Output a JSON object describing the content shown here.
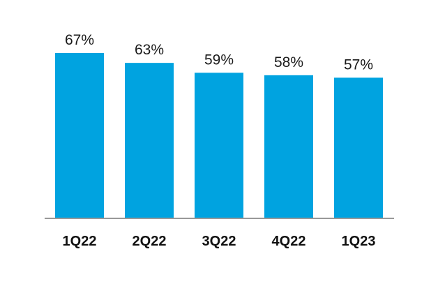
{
  "chart_data": {
    "type": "bar",
    "categories": [
      "1Q22",
      "2Q22",
      "3Q22",
      "4Q22",
      "1Q23"
    ],
    "values": [
      67,
      63,
      59,
      58,
      57
    ],
    "data_labels": [
      "67%",
      "63%",
      "59%",
      "58%",
      "57%"
    ],
    "unit": "%",
    "ylim": [
      0,
      67
    ],
    "grid": false,
    "legend": "none",
    "colors": {
      "bar": "#00a3e0",
      "axis": "#999999",
      "label": "#1a1a1a"
    }
  }
}
